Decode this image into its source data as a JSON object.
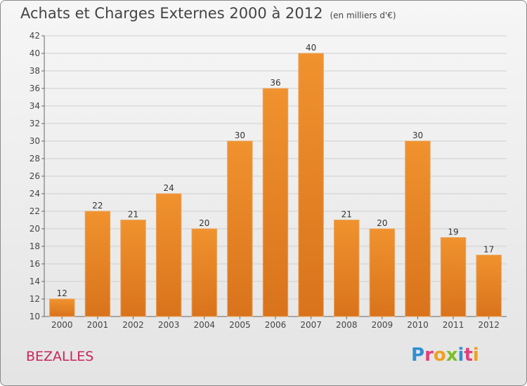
{
  "title": "Achats et Charges Externes 2000 à 2012",
  "subtitle": "(en milliers d'€)",
  "commune": "BEZALLES",
  "logo": {
    "letters": [
      "P",
      "r",
      "o",
      "x",
      "i",
      "t",
      "i"
    ],
    "colors": [
      "#2f8fd3",
      "#e0417d",
      "#f0a020",
      "#7bbf2a",
      "#2f8fd3",
      "#e0417d",
      "#f0a020"
    ]
  },
  "colors": {
    "bar": "#f0922e",
    "bar_dark": "#d9731c",
    "grid": "#cfcfcf",
    "axis": "#666666"
  },
  "chart_data": {
    "type": "bar",
    "title": "Achats et Charges Externes 2000 à 2012",
    "subtitle": "(en milliers d'€)",
    "categories": [
      "2000",
      "2001",
      "2002",
      "2003",
      "2004",
      "2005",
      "2006",
      "2007",
      "2008",
      "2009",
      "2010",
      "2011",
      "2012"
    ],
    "values": [
      12,
      22,
      21,
      24,
      20,
      30,
      36,
      40,
      21,
      20,
      30,
      19,
      17
    ],
    "ylim": [
      10,
      42
    ],
    "yticks": [
      10,
      12,
      14,
      16,
      18,
      20,
      22,
      24,
      26,
      28,
      30,
      32,
      34,
      36,
      38,
      40,
      42
    ],
    "grid": true
  }
}
